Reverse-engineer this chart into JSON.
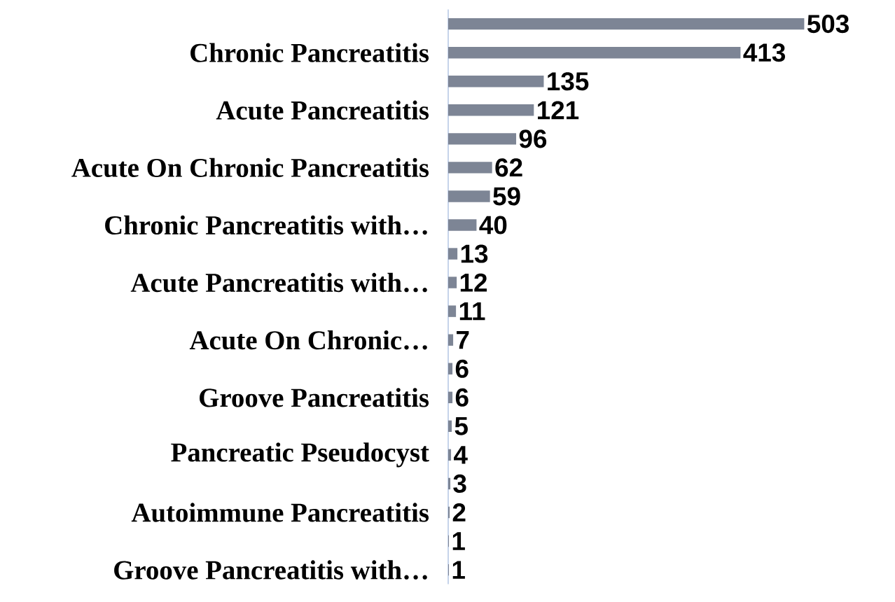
{
  "chart_data": {
    "type": "bar",
    "orientation": "horizontal",
    "categories": [
      null,
      "Chronic Pancreatitis",
      null,
      "Acute Pancreatitis",
      null,
      "Acute On Chronic Pancreatitis",
      null,
      "Chronic Pancreatitis with…",
      null,
      "Acute Pancreatitis with…",
      null,
      "Acute On Chronic…",
      null,
      "Groove Pancreatitis",
      null,
      "Pancreatic Pseudocyst",
      null,
      "Autoimmune Pancreatitis",
      null,
      "Groove Pancreatitis with…"
    ],
    "values": [
      503,
      413,
      135,
      121,
      96,
      62,
      59,
      40,
      13,
      12,
      11,
      7,
      6,
      6,
      5,
      4,
      3,
      2,
      1,
      1
    ],
    "color": "#7d8595",
    "data_labels": true
  }
}
